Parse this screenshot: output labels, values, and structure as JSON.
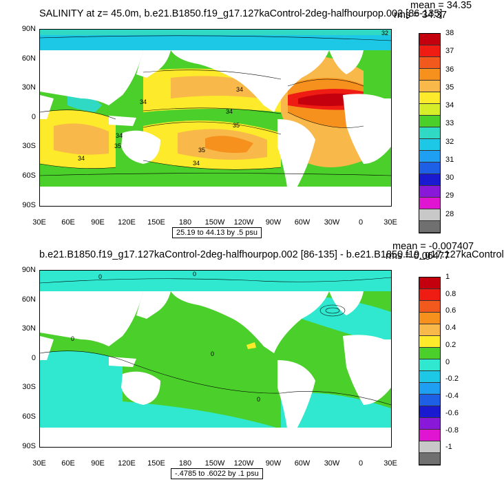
{
  "panel1": {
    "title": "SALINITY at z=  45.0m, b.e21.B1850.f19_g17.127kaControl-2deg-halfhourpop.002 [86-135]",
    "mean": "mean = 34.35",
    "rms": "rms = 34.37",
    "range": "25.19 to 44.13 by .5 psu",
    "colorbar_labels": [
      "38",
      "37",
      "36",
      "35",
      "34",
      "33",
      "32",
      "31",
      "30",
      "29",
      "28"
    ],
    "colorbar_colors": [
      "#c4000e",
      "#ef1c14",
      "#f25a1d",
      "#f6911e",
      "#f9b84a",
      "#fdea2a",
      "#d6ed2a",
      "#4bcf2b",
      "#2fd9c4",
      "#1cc8e6",
      "#1e9ff2",
      "#1d60e6",
      "#1a1ad1",
      "#8a18d8",
      "#e015d1",
      "#c8c8c8",
      "#707070"
    ],
    "contour_labels": [
      "34",
      "34",
      "34",
      "34",
      "35",
      "35",
      "35",
      "34",
      "34",
      "32"
    ]
  },
  "panel2": {
    "title": "b.e21.B1850.f19_g17.127kaControl-2deg-halfhourpop.002 [86-135] - b.e21.B1850.f19_g17.127kaControl",
    "mean": "mean = -0.007407",
    "rms": "rms = 0.06477",
    "range": "-.4785 to .6022 by .1 psu",
    "colorbar_labels": [
      "1",
      "0.8",
      "0.6",
      "0.4",
      "0.2",
      "0",
      "-0.2",
      "-0.4",
      "-0.6",
      "-0.8",
      "-1"
    ],
    "colorbar_colors": [
      "#c4000e",
      "#ef1c14",
      "#f25a1d",
      "#f6911e",
      "#f9b84a",
      "#fdea2a",
      "#4bcf2b",
      "#2fe8cf",
      "#1cc8e6",
      "#1e9ff2",
      "#1d60e6",
      "#1a1ad1",
      "#8a18d8",
      "#e015d1",
      "#c8c8c8",
      "#707070"
    ],
    "contour_labels": [
      "0",
      "0",
      "0",
      "0",
      "0"
    ]
  },
  "lat_labels": [
    "90N",
    "60N",
    "30N",
    "0",
    "30S",
    "60S",
    "90S"
  ],
  "lon_labels": [
    "30E",
    "60E",
    "90E",
    "120E",
    "150E",
    "180",
    "150W",
    "120W",
    "90W",
    "60W",
    "30W",
    "0",
    "30E"
  ]
}
